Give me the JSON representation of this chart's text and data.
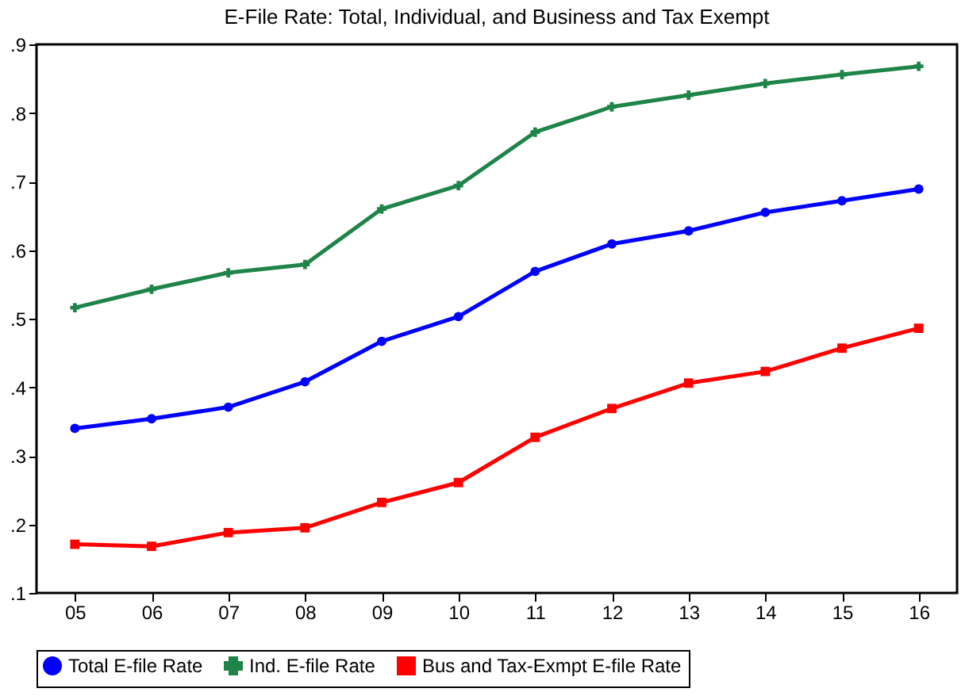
{
  "chart_data": {
    "type": "line",
    "title": "E-File Rate: Total, Individual, and Business and Tax Exempt",
    "categories": [
      "05",
      "06",
      "07",
      "08",
      "09",
      "10",
      "11",
      "12",
      "13",
      "14",
      "15",
      "16"
    ],
    "series": [
      {
        "name": "Total E-file Rate",
        "color": "#0000ff",
        "marker": "circle",
        "values": [
          0.34,
          0.354,
          0.371,
          0.408,
          0.467,
          0.503,
          0.569,
          0.609,
          0.628,
          0.655,
          0.672,
          0.689
        ]
      },
      {
        "name": "Ind. E-file Rate",
        "color": "#1e8449",
        "marker": "cross",
        "values": [
          0.516,
          0.543,
          0.567,
          0.579,
          0.66,
          0.694,
          0.772,
          0.809,
          0.826,
          0.843,
          0.856,
          0.868
        ]
      },
      {
        "name": "Bus and Tax-Exmpt E-file Rate",
        "color": "#ff0000",
        "marker": "square",
        "values": [
          0.171,
          0.168,
          0.188,
          0.195,
          0.232,
          0.261,
          0.327,
          0.369,
          0.406,
          0.423,
          0.457,
          0.486
        ]
      }
    ],
    "ylim": [
      0.1,
      0.9
    ],
    "yticks": [
      {
        "value": 0.1,
        "label": ".1"
      },
      {
        "value": 0.2,
        "label": ".2"
      },
      {
        "value": 0.3,
        "label": ".3"
      },
      {
        "value": 0.4,
        "label": ".4"
      },
      {
        "value": 0.5,
        "label": ".5"
      },
      {
        "value": 0.6,
        "label": ".6"
      },
      {
        "value": 0.7,
        "label": ".7"
      },
      {
        "value": 0.8,
        "label": ".8"
      },
      {
        "value": 0.9,
        "label": ".9"
      }
    ],
    "grid": false,
    "legend": "bottom",
    "line_style": "solid"
  }
}
